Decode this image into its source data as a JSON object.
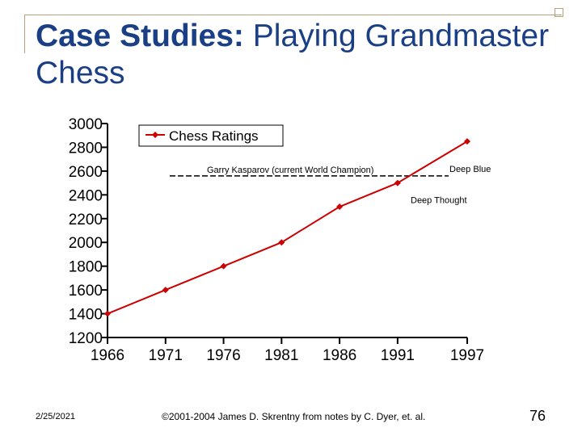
{
  "slide": {
    "title_bold": "Case Studies:",
    "title_rest": " Playing Grandmaster Chess"
  },
  "footer": {
    "date": "2/25/2021",
    "copyright": "©2001-2004 James D. Skrentny from notes by C. Dyer, et. al.",
    "page": "76"
  },
  "colors": {
    "title": "#1a3f85",
    "series": "#cc0000",
    "axis": "#000000"
  },
  "chart_data": {
    "type": "line",
    "x": [
      "1966",
      "1971",
      "1976",
      "1981",
      "1986",
      "1991",
      "1997"
    ],
    "ylim": [
      1200,
      3000
    ],
    "yticks": [
      "3000",
      "2800",
      "2600",
      "2400",
      "2200",
      "2000",
      "1800",
      "1600",
      "1400",
      "1200"
    ],
    "legend": "top",
    "series": [
      {
        "name": "Chess Ratings",
        "points": [
          {
            "x": 1966,
            "y": 1400
          },
          {
            "x": 1971,
            "y": 1600
          },
          {
            "x": 1976,
            "y": 1800
          },
          {
            "x": 1981,
            "y": 2000
          },
          {
            "x": 1986,
            "y": 2300
          },
          {
            "x": 1991,
            "y": 2500
          },
          {
            "x": 1997,
            "y": 2850
          }
        ]
      }
    ],
    "reference_line": {
      "label": "Garry Kasparov (current World Champion)",
      "y": 2600
    },
    "annotations": [
      {
        "text": "Deep Blue",
        "x": 1997,
        "y": 2600
      },
      {
        "text": "Deep Thought",
        "x": 1991,
        "y": 2400
      }
    ]
  }
}
